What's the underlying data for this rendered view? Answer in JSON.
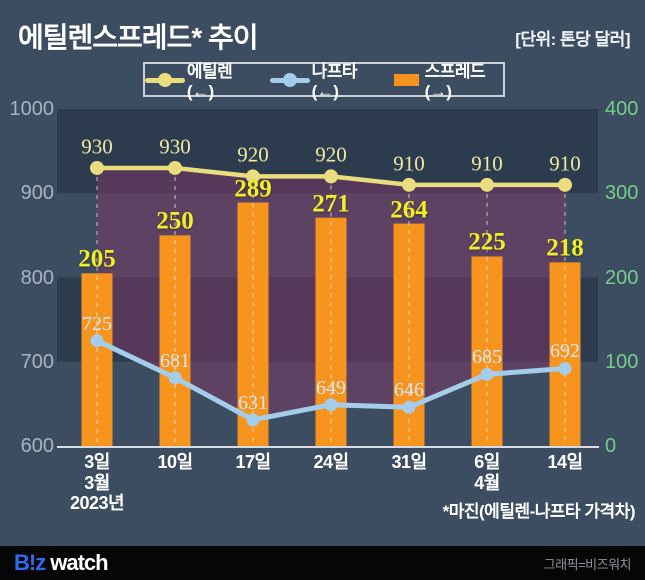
{
  "header": {
    "title": "에틸렌스프레드* 추이",
    "unit_label": "[단위: 톤당 달러]"
  },
  "legend": {
    "items": [
      {
        "label": "에틸렌(←)",
        "swatch": "line-marker"
      },
      {
        "label": "나프타(←)",
        "swatch": "line-marker"
      },
      {
        "label": "스프레드(→)",
        "swatch": "bar"
      }
    ]
  },
  "chart_data": {
    "type": "combo-bar-line",
    "title": "에틸렌스프레드* 추이",
    "unit": "톤당 달러",
    "categories": [
      "3일",
      "10일",
      "17일",
      "24일",
      "31일",
      "6일",
      "14일"
    ],
    "x_tick_lines": [
      [
        "3일",
        "3월",
        "2023년"
      ],
      [
        "10일"
      ],
      [
        "17일"
      ],
      [
        "24일"
      ],
      [
        "31일"
      ],
      [
        "6일",
        "4월"
      ],
      [
        "14일"
      ]
    ],
    "series": [
      {
        "name": "에틸렌(←)",
        "type": "line",
        "axis": "left",
        "color": "#EADD7E",
        "label_color": "#EFE9A2",
        "values": [
          930,
          930,
          920,
          920,
          910,
          910,
          910
        ]
      },
      {
        "name": "나프타(←)",
        "type": "line",
        "axis": "left",
        "color": "#A3CDEA",
        "label_color": "#D9E8F4",
        "values": [
          725,
          681,
          631,
          649,
          646,
          685,
          692
        ]
      },
      {
        "name": "스프레드(→)",
        "type": "bar",
        "axis": "right",
        "color": "#F7941E",
        "label_color": "#F2EF25",
        "values": [
          205,
          250,
          289,
          271,
          264,
          225,
          218
        ]
      }
    ],
    "left_axis": {
      "min": 600,
      "max": 1000,
      "ticks": [
        1000,
        900,
        800,
        700,
        600
      ]
    },
    "right_axis": {
      "min": 0,
      "max": 400,
      "ticks": [
        400,
        300,
        200,
        100,
        0
      ]
    },
    "legend_position": "top",
    "grid": "alternating-bands",
    "area_between_lines": "spread (ethylene minus naphtha)"
  },
  "footnote": "*마진(에틸렌-나프타 가격차)",
  "footer": {
    "logo_biz": "B!z",
    "logo_watch": "watch",
    "credit": "그래픽=비즈워치"
  },
  "colors": {
    "background": "#3C4D61",
    "band_dark": "#2D3B4F",
    "spread_area_fill": "rgba(128,56,102,0.5)",
    "ethylene_line": "#EADD7E",
    "naphtha_line": "#A3CDEA",
    "spread_bar": "#F7941E",
    "left_tick_text": "#A9B4C2",
    "right_tick_text": "#74CE8A",
    "axis_line": "#D6DCE2",
    "dashed_guide": "rgba(255,255,255,0.45)",
    "footer_background": "#060606",
    "logo_blue": "#2F6BF2"
  }
}
